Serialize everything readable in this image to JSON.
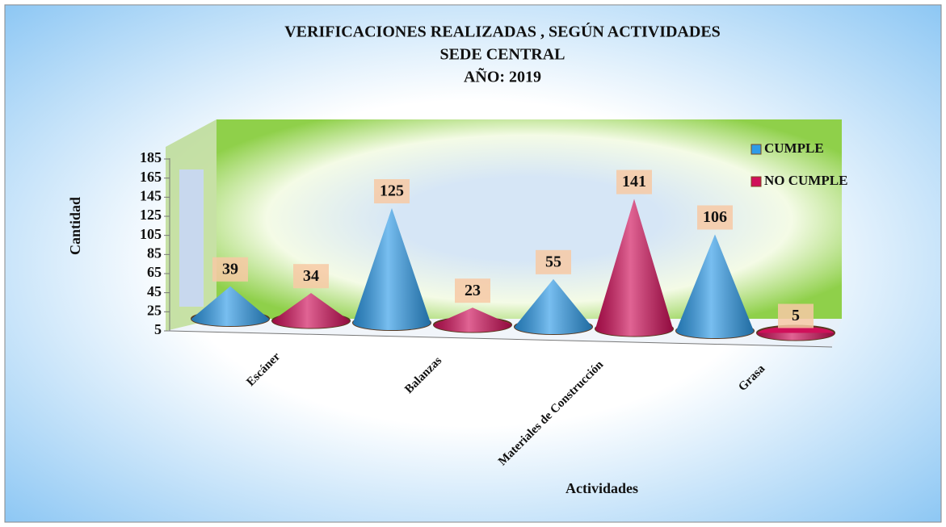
{
  "chart_data": {
    "type": "cone3d",
    "title": [
      "VERIFICACIONES REALIZADAS , SEGÚN ACTIVIDADES",
      "SEDE CENTRAL",
      "AÑO: 2019"
    ],
    "x_label": "Actividades",
    "y_label": "Cantidad",
    "categories": [
      "Escáner",
      "Balanzas",
      "Materiales de Construcción",
      "Grasa"
    ],
    "series": [
      {
        "name": "CUMPLE",
        "color": "#2f9be8",
        "values": [
          39,
          125,
          55,
          106
        ]
      },
      {
        "name": "NO CUMPLE",
        "color": "#d0105a",
        "values": [
          34,
          23,
          141,
          5
        ]
      }
    ],
    "ylim": [
      5,
      185
    ],
    "yticks": [
      5,
      25,
      45,
      65,
      85,
      105,
      125,
      145,
      165,
      185
    ],
    "legend": "top-right"
  }
}
